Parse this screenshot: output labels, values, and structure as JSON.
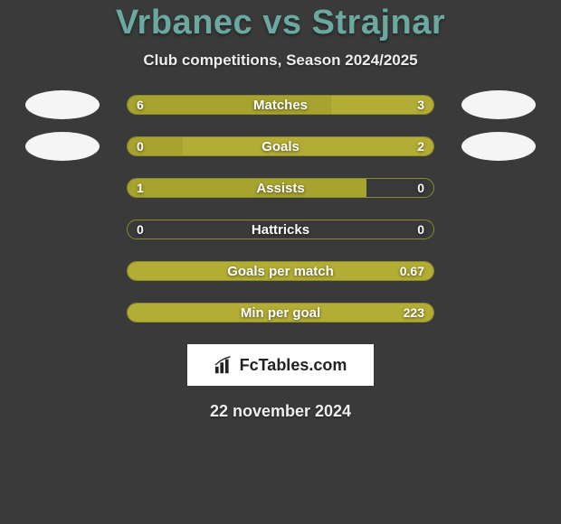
{
  "title": "Vrbanec vs Strajnar",
  "subtitle": "Club competitions, Season 2024/2025",
  "date": "22 november 2024",
  "logo_text": "FcTables.com",
  "colors": {
    "left_bar": "#a8a22f",
    "right_bar": "#b3ad35",
    "title_color": "#6aa8a0",
    "background": "#3a3a3a",
    "bar_border": "#8a8a2a"
  },
  "stats": [
    {
      "label": "Matches",
      "left_val": "6",
      "right_val": "3",
      "left_pct": 66.7,
      "right_pct": 33.3,
      "show_avatars": true
    },
    {
      "label": "Goals",
      "left_val": "0",
      "right_val": "2",
      "left_pct": 18,
      "right_pct": 82,
      "show_avatars": true
    },
    {
      "label": "Assists",
      "left_val": "1",
      "right_val": "0",
      "left_pct": 78,
      "right_pct": 0,
      "show_avatars": false
    },
    {
      "label": "Hattricks",
      "left_val": "0",
      "right_val": "0",
      "left_pct": 0,
      "right_pct": 0,
      "show_avatars": false
    },
    {
      "label": "Goals per match",
      "left_val": "",
      "right_val": "0.67",
      "left_pct": 0,
      "right_pct": 100,
      "show_avatars": false
    },
    {
      "label": "Min per goal",
      "left_val": "",
      "right_val": "223",
      "left_pct": 0,
      "right_pct": 100,
      "show_avatars": false
    }
  ]
}
